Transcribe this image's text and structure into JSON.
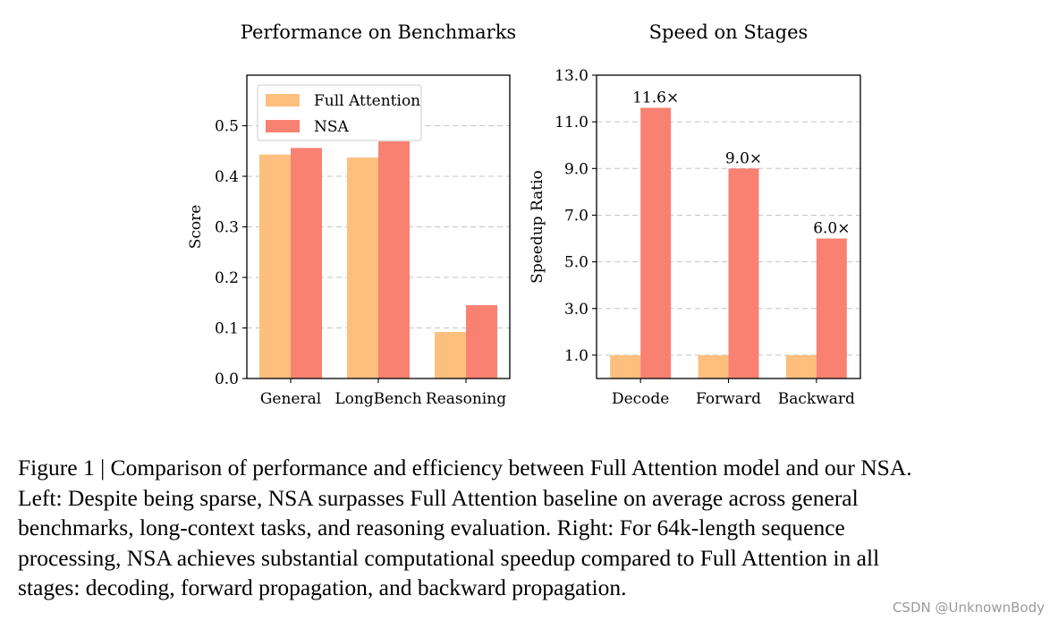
{
  "chart_data": [
    {
      "type": "bar",
      "title": "Performance on Benchmarks",
      "xlabel": "",
      "ylabel": "Score",
      "categories": [
        "General",
        "LongBench",
        "Reasoning"
      ],
      "series": [
        {
          "name": "Full Attention",
          "color": "#fdbf7d",
          "values": [
            0.443,
            0.437,
            0.092
          ]
        },
        {
          "name": "NSA",
          "color": "#f98171",
          "values": [
            0.456,
            0.469,
            0.145
          ]
        }
      ],
      "ylim": [
        0,
        0.6
      ],
      "yticks": [
        0.0,
        0.1,
        0.2,
        0.3,
        0.4,
        0.5
      ],
      "ytick_labels": [
        "0.0",
        "0.1",
        "0.2",
        "0.3",
        "0.4",
        "0.5"
      ],
      "grid": true,
      "legend": "top-left"
    },
    {
      "type": "bar",
      "title": "Speed on Stages",
      "xlabel": "",
      "ylabel": "Speedup Ratio",
      "categories": [
        "Decode",
        "Forward",
        "Backward"
      ],
      "series": [
        {
          "name": "Full Attention",
          "color": "#fdbf7d",
          "values": [
            1.0,
            1.0,
            1.0
          ]
        },
        {
          "name": "NSA",
          "color": "#f98171",
          "values": [
            11.6,
            9.0,
            6.0
          ]
        }
      ],
      "data_labels": [
        "11.6×",
        "9.0×",
        "6.0×"
      ],
      "ylim": [
        0,
        13.0
      ],
      "yticks": [
        1.0,
        3.0,
        5.0,
        7.0,
        9.0,
        11.0,
        13.0
      ],
      "ytick_labels": [
        "1.0",
        "3.0",
        "5.0",
        "7.0",
        "9.0",
        "11.0",
        "13.0"
      ],
      "grid": true,
      "legend": "none"
    }
  ],
  "caption": [
    "Figure 1 | Comparison of performance and efficiency between Full Attention model and our NSA.",
    "Left: Despite being sparse, NSA surpasses Full Attention baseline on average across general",
    "benchmarks, long-context tasks, and reasoning evaluation.  Right: For 64k-length sequence",
    "processing, NSA achieves substantial computational speedup compared to Full Attention in all",
    "stages: decoding, forward propagation, and backward propagation."
  ],
  "watermark": "CSDN @UnknownBody"
}
